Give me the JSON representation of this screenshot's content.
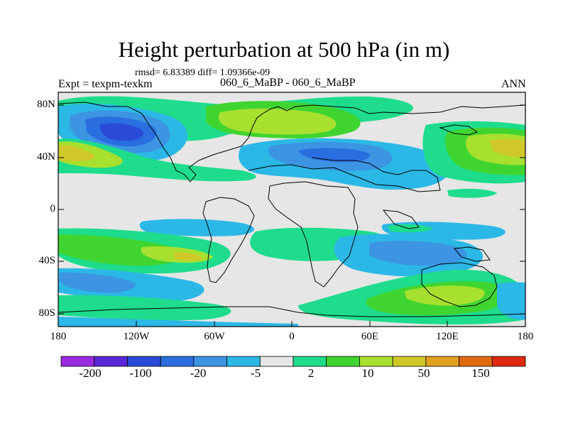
{
  "title": "Height perturbation at 500 hPa (in m)",
  "stats_line": "rmsd= 6.83389 diff= 1.09366e-09",
  "left_label": "Expt = texpm-texkm",
  "center_label": "060_6_MaBP - 060_6_MaBP",
  "right_label": "ANN",
  "map": {
    "y_ticks": [
      "80N",
      "40N",
      "0",
      "40S",
      "80S"
    ],
    "x_ticks": [
      "180",
      "120W",
      "60W",
      "0",
      "60E",
      "120E",
      "180"
    ]
  },
  "colorbar": {
    "colors": [
      "#9a2be0",
      "#5a28d8",
      "#2a4ad8",
      "#2a6ee0",
      "#3c94e2",
      "#2cb8e6",
      "#e6e6e6",
      "#1edc8c",
      "#40d430",
      "#a8e030",
      "#d0c828",
      "#e0a020",
      "#e06a10",
      "#e02a10"
    ],
    "labels": [
      "-200",
      "-100",
      "-20",
      "-5",
      "2",
      "10",
      "50",
      "150"
    ]
  }
}
